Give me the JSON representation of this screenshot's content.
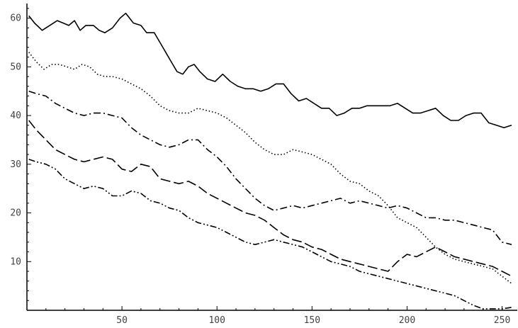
{
  "chart_data": {
    "type": "line",
    "title": "",
    "xlabel": "",
    "ylabel": "",
    "xlim": [
      0,
      258
    ],
    "ylim": [
      0,
      63
    ],
    "x_ticks": [
      50,
      100,
      150,
      200,
      250
    ],
    "y_ticks": [
      10,
      20,
      30,
      40,
      50,
      60
    ],
    "grid": false,
    "legend": "none",
    "series": [
      {
        "style": "solid",
        "points": [
          [
            1,
            60.5
          ],
          [
            4,
            59
          ],
          [
            8,
            57.5
          ],
          [
            12,
            58.5
          ],
          [
            16,
            59.5
          ],
          [
            19,
            59
          ],
          [
            22,
            58.5
          ],
          [
            25,
            59.5
          ],
          [
            28,
            57.5
          ],
          [
            31,
            58.5
          ],
          [
            35,
            58.5
          ],
          [
            38,
            57.5
          ],
          [
            41,
            57
          ],
          [
            45,
            58
          ],
          [
            49,
            60
          ],
          [
            52,
            61
          ],
          [
            56,
            59
          ],
          [
            60,
            58.5
          ],
          [
            63,
            57
          ],
          [
            67,
            57
          ],
          [
            70,
            55
          ],
          [
            73,
            53
          ],
          [
            76,
            51
          ],
          [
            79,
            49
          ],
          [
            82,
            48.5
          ],
          [
            85,
            50
          ],
          [
            88,
            50.5
          ],
          [
            91,
            49
          ],
          [
            95,
            47.5
          ],
          [
            99,
            47
          ],
          [
            103,
            48.5
          ],
          [
            107,
            47
          ],
          [
            111,
            46
          ],
          [
            115,
            45.5
          ],
          [
            119,
            45.5
          ],
          [
            123,
            45
          ],
          [
            127,
            45.5
          ],
          [
            131,
            46.5
          ],
          [
            135,
            46.5
          ],
          [
            139,
            44.5
          ],
          [
            143,
            43
          ],
          [
            147,
            43.5
          ],
          [
            151,
            42.5
          ],
          [
            155,
            41.5
          ],
          [
            159,
            41.5
          ],
          [
            163,
            40
          ],
          [
            167,
            40.5
          ],
          [
            171,
            41.5
          ],
          [
            175,
            41.5
          ],
          [
            179,
            42
          ],
          [
            183,
            42
          ],
          [
            187,
            42
          ],
          [
            191,
            42
          ],
          [
            195,
            42.5
          ],
          [
            199,
            41.5
          ],
          [
            203,
            40.5
          ],
          [
            207,
            40.5
          ],
          [
            211,
            41
          ],
          [
            215,
            41.5
          ],
          [
            219,
            40
          ],
          [
            223,
            39
          ],
          [
            227,
            39
          ],
          [
            231,
            40
          ],
          [
            235,
            40.5
          ],
          [
            239,
            40.5
          ],
          [
            243,
            38.5
          ],
          [
            247,
            38
          ],
          [
            251,
            37.5
          ],
          [
            255,
            38
          ]
        ]
      },
      {
        "style": "dotted",
        "points": [
          [
            1,
            53
          ],
          [
            5,
            51
          ],
          [
            9,
            49.5
          ],
          [
            13,
            50.5
          ],
          [
            17,
            50.5
          ],
          [
            21,
            50
          ],
          [
            25,
            49.5
          ],
          [
            29,
            50.5
          ],
          [
            33,
            50
          ],
          [
            37,
            48.5
          ],
          [
            41,
            48
          ],
          [
            45,
            48
          ],
          [
            50,
            47.5
          ],
          [
            55,
            46.5
          ],
          [
            60,
            45.5
          ],
          [
            65,
            44
          ],
          [
            70,
            42
          ],
          [
            75,
            41
          ],
          [
            80,
            40.5
          ],
          [
            85,
            40.5
          ],
          [
            90,
            41.5
          ],
          [
            95,
            41
          ],
          [
            100,
            40.5
          ],
          [
            105,
            39.5
          ],
          [
            110,
            38
          ],
          [
            115,
            36.5
          ],
          [
            120,
            34.5
          ],
          [
            125,
            33
          ],
          [
            130,
            32
          ],
          [
            135,
            32
          ],
          [
            140,
            33
          ],
          [
            145,
            32.5
          ],
          [
            150,
            32
          ],
          [
            155,
            31
          ],
          [
            160,
            30
          ],
          [
            165,
            28
          ],
          [
            170,
            26.5
          ],
          [
            175,
            26
          ],
          [
            180,
            24.5
          ],
          [
            185,
            23.5
          ],
          [
            190,
            21.5
          ],
          [
            195,
            19
          ],
          [
            200,
            18
          ],
          [
            205,
            17
          ],
          [
            210,
            15
          ],
          [
            215,
            13
          ],
          [
            220,
            11.5
          ],
          [
            225,
            10.5
          ],
          [
            230,
            10
          ],
          [
            235,
            9.5
          ],
          [
            240,
            9
          ],
          [
            245,
            8.5
          ],
          [
            250,
            7
          ],
          [
            255,
            5.5
          ]
        ]
      },
      {
        "style": "dash-dot",
        "points": [
          [
            1,
            45
          ],
          [
            5,
            44.5
          ],
          [
            10,
            44
          ],
          [
            15,
            42.5
          ],
          [
            20,
            41.5
          ],
          [
            25,
            40.5
          ],
          [
            30,
            40
          ],
          [
            35,
            40.5
          ],
          [
            40,
            40.5
          ],
          [
            45,
            40
          ],
          [
            50,
            39.5
          ],
          [
            55,
            37.5
          ],
          [
            60,
            36
          ],
          [
            65,
            35
          ],
          [
            70,
            34
          ],
          [
            75,
            33.5
          ],
          [
            80,
            34
          ],
          [
            85,
            35
          ],
          [
            90,
            35
          ],
          [
            95,
            33
          ],
          [
            100,
            31.5
          ],
          [
            105,
            29.5
          ],
          [
            110,
            27
          ],
          [
            115,
            25
          ],
          [
            120,
            23
          ],
          [
            125,
            21.5
          ],
          [
            130,
            20.5
          ],
          [
            135,
            21
          ],
          [
            140,
            21.5
          ],
          [
            145,
            21
          ],
          [
            150,
            21.5
          ],
          [
            155,
            22
          ],
          [
            160,
            22.5
          ],
          [
            165,
            23
          ],
          [
            170,
            22
          ],
          [
            175,
            22.5
          ],
          [
            180,
            22
          ],
          [
            185,
            21.5
          ],
          [
            190,
            21
          ],
          [
            195,
            21.5
          ],
          [
            200,
            21
          ],
          [
            205,
            20
          ],
          [
            210,
            19
          ],
          [
            215,
            19
          ],
          [
            220,
            18.5
          ],
          [
            225,
            18.5
          ],
          [
            230,
            18
          ],
          [
            235,
            17.5
          ],
          [
            240,
            17
          ],
          [
            245,
            16.5
          ],
          [
            250,
            14
          ],
          [
            255,
            13.5
          ]
        ]
      },
      {
        "style": "long-dash",
        "points": [
          [
            1,
            39
          ],
          [
            5,
            37
          ],
          [
            10,
            35
          ],
          [
            15,
            33
          ],
          [
            20,
            32
          ],
          [
            25,
            31
          ],
          [
            30,
            30.5
          ],
          [
            35,
            31
          ],
          [
            40,
            31.5
          ],
          [
            45,
            31
          ],
          [
            50,
            29
          ],
          [
            55,
            28.5
          ],
          [
            60,
            30
          ],
          [
            65,
            29.5
          ],
          [
            70,
            27
          ],
          [
            75,
            26.5
          ],
          [
            80,
            26
          ],
          [
            85,
            26.5
          ],
          [
            90,
            25.5
          ],
          [
            95,
            24
          ],
          [
            100,
            23
          ],
          [
            105,
            22
          ],
          [
            110,
            21
          ],
          [
            115,
            20
          ],
          [
            120,
            19.5
          ],
          [
            125,
            18.5
          ],
          [
            130,
            17
          ],
          [
            135,
            15.5
          ],
          [
            140,
            14.5
          ],
          [
            145,
            14
          ],
          [
            150,
            13
          ],
          [
            155,
            12.5
          ],
          [
            160,
            11.5
          ],
          [
            165,
            10.5
          ],
          [
            170,
            10
          ],
          [
            175,
            9.5
          ],
          [
            180,
            9
          ],
          [
            185,
            8.5
          ],
          [
            190,
            8
          ],
          [
            195,
            10
          ],
          [
            200,
            11.5
          ],
          [
            205,
            11
          ],
          [
            210,
            12
          ],
          [
            215,
            13
          ],
          [
            220,
            12
          ],
          [
            225,
            11
          ],
          [
            230,
            10.5
          ],
          [
            235,
            10
          ],
          [
            240,
            9.5
          ],
          [
            245,
            9
          ],
          [
            250,
            8
          ],
          [
            255,
            7
          ]
        ]
      },
      {
        "style": "dash-dot-dot",
        "points": [
          [
            1,
            31
          ],
          [
            5,
            30.5
          ],
          [
            10,
            30
          ],
          [
            15,
            29
          ],
          [
            20,
            27
          ],
          [
            25,
            26
          ],
          [
            30,
            25
          ],
          [
            35,
            25.5
          ],
          [
            40,
            25
          ],
          [
            45,
            23.5
          ],
          [
            50,
            23.5
          ],
          [
            55,
            24.5
          ],
          [
            60,
            24
          ],
          [
            65,
            22.5
          ],
          [
            70,
            22
          ],
          [
            75,
            21
          ],
          [
            80,
            20.5
          ],
          [
            85,
            19
          ],
          [
            90,
            18
          ],
          [
            95,
            17.5
          ],
          [
            100,
            17
          ],
          [
            105,
            16
          ],
          [
            110,
            15
          ],
          [
            115,
            14
          ],
          [
            120,
            13.5
          ],
          [
            125,
            14
          ],
          [
            130,
            14.5
          ],
          [
            135,
            14
          ],
          [
            140,
            13.5
          ],
          [
            145,
            13
          ],
          [
            150,
            12
          ],
          [
            155,
            11
          ],
          [
            160,
            10
          ],
          [
            165,
            9.5
          ],
          [
            170,
            9
          ],
          [
            175,
            8
          ],
          [
            180,
            7.5
          ],
          [
            185,
            7
          ],
          [
            190,
            6.5
          ],
          [
            195,
            6
          ],
          [
            200,
            5.5
          ],
          [
            205,
            5
          ],
          [
            210,
            4.5
          ],
          [
            215,
            4
          ],
          [
            220,
            3.5
          ],
          [
            225,
            3
          ],
          [
            230,
            2
          ],
          [
            235,
            1
          ],
          [
            240,
            0.3
          ],
          [
            245,
            0.3
          ],
          [
            250,
            0.3
          ],
          [
            255,
            0.6
          ]
        ]
      }
    ]
  }
}
